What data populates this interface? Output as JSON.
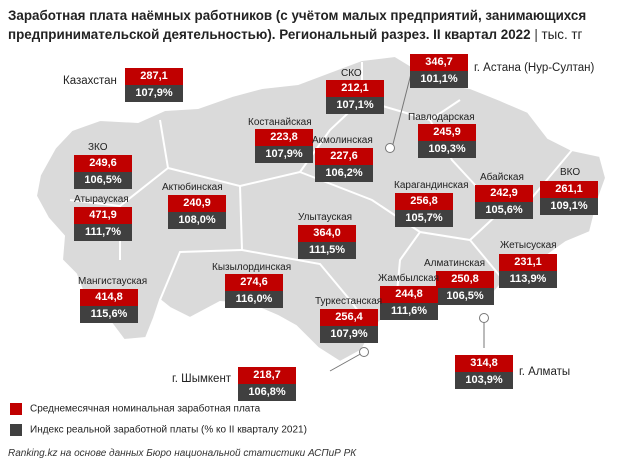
{
  "title": {
    "bold": "Заработная плата наёмных работников (с учётом малых предприятий, занимающихся предпринимательской деятельностью). Региональный разрез. II квартал 2022",
    "separator": "|",
    "unit": "тыс. тг"
  },
  "regions": {
    "kazakhstan": {
      "name": "Казахстан",
      "salary": "287,1",
      "index": "107,9%"
    },
    "sko": {
      "name": "СКО",
      "salary": "212,1",
      "index": "107,1%"
    },
    "astana": {
      "name": "г. Астана (Нур-Султан)",
      "salary": "346,7",
      "index": "101,1%"
    },
    "pavlodar": {
      "name": "Павлодарская",
      "salary": "245,9",
      "index": "109,3%"
    },
    "kostanay": {
      "name": "Костанайская",
      "salary": "223,8",
      "index": "107,9%"
    },
    "akmola": {
      "name": "Акмолинская",
      "salary": "227,6",
      "index": "106,2%"
    },
    "zko": {
      "name": "ЗКО",
      "salary": "249,6",
      "index": "106,5%"
    },
    "atyrau": {
      "name": "Атырауская",
      "salary": "471,9",
      "index": "111,7%"
    },
    "aktobe": {
      "name": "Актюбинская",
      "salary": "240,9",
      "index": "108,0%"
    },
    "karaganda": {
      "name": "Карагандинская",
      "salary": "256,8",
      "index": "105,7%"
    },
    "abay": {
      "name": "Абайская",
      "salary": "242,9",
      "index": "105,6%"
    },
    "vko": {
      "name": "ВКО",
      "salary": "261,1",
      "index": "109,1%"
    },
    "ulytau": {
      "name": "Улытауская",
      "salary": "364,0",
      "index": "111,5%"
    },
    "zhetysu": {
      "name": "Жетысуская",
      "salary": "231,1",
      "index": "113,9%"
    },
    "kyzylorda": {
      "name": "Кызылординская",
      "salary": "274,6",
      "index": "116,0%"
    },
    "almaty_reg": {
      "name": "Алматинская",
      "salary": "250,8",
      "index": "106,5%"
    },
    "zhambyl": {
      "name": "Жамбылская",
      "salary": "244,8",
      "index": "111,6%"
    },
    "mangystau": {
      "name": "Мангистауская",
      "salary": "414,8",
      "index": "115,6%"
    },
    "turkestan": {
      "name": "Туркестанская",
      "salary": "256,4",
      "index": "107,9%"
    },
    "shymkent": {
      "name": "г. Шымкент",
      "salary": "218,7",
      "index": "106,8%"
    },
    "almaty_city": {
      "name": "г. Алматы",
      "salary": "314,8",
      "index": "103,9%"
    }
  },
  "legend": {
    "salary_label": "Среднемесячная номинальная заработная плата",
    "index_label": "Индекс реальной заработной платы (% ко II кварталу 2021)",
    "salary_color": "#c00000",
    "index_color": "#404040"
  },
  "source": "Ranking.kz на основе данных Бюро национальной статистики АСПиР РК"
}
